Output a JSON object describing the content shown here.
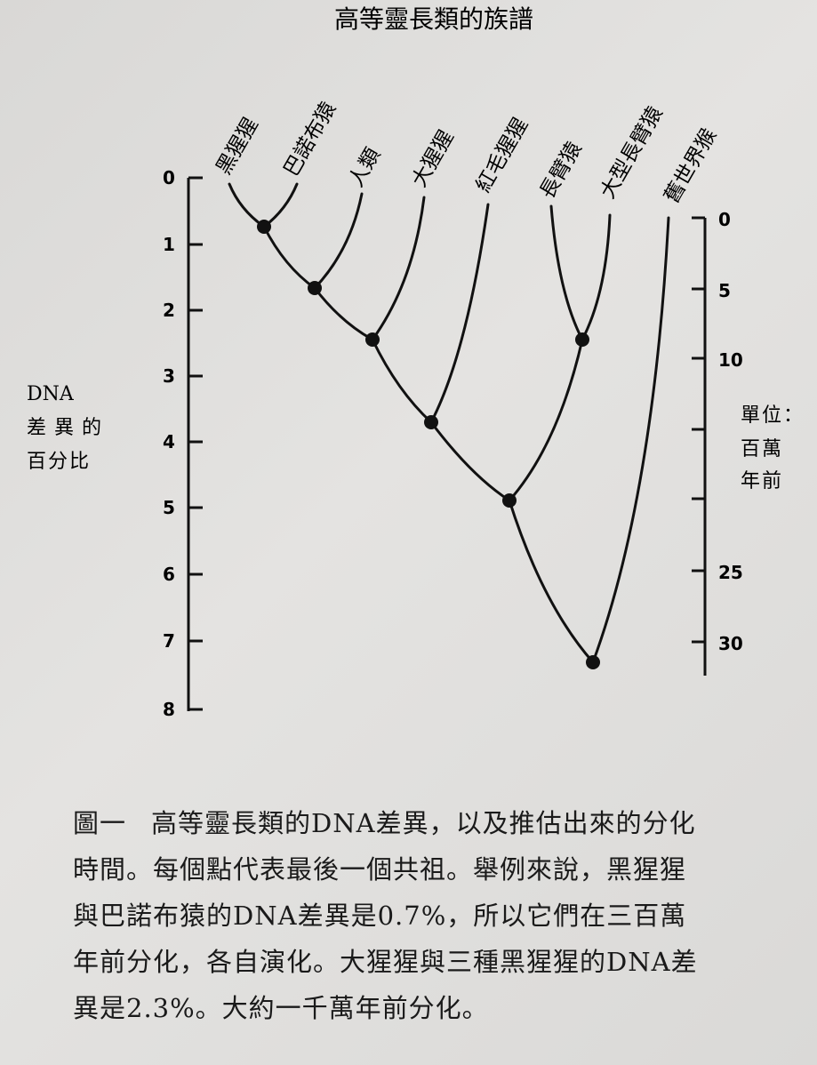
{
  "title": "高等靈長類的族譜",
  "species": [
    "黑猩猩",
    "巴諾布猿",
    "人類",
    "大猩猩",
    "紅毛猩猩",
    "長臂猿",
    "大型長臂猿",
    "舊世界猴"
  ],
  "left_axis": {
    "label_line1": "DNA",
    "label_line2": "差異的",
    "label_line3": "百分比",
    "ticks": [
      "0",
      "1",
      "2",
      "3",
      "4",
      "5",
      "6",
      "7",
      "8"
    ]
  },
  "right_axis": {
    "label_line1": "單位：",
    "label_line2": "百萬",
    "label_line3": "年前",
    "ticks": [
      "0",
      "5",
      "10",
      "25",
      "30"
    ]
  },
  "caption": {
    "fig_label": "圖一",
    "line1": "高等靈長類的DNA差異，以及推估出來的分化",
    "line2": "時間。每個點代表最後一個共祖。舉例來說，黑猩猩",
    "line3": "與巴諾布猿的DNA差異是0.7%，所以它們在三百萬",
    "line4": "年前分化，各自演化。大猩猩與三種黑猩猩的DNA差",
    "line5": "異是2.3%。大約一千萬年前分化。"
  }
}
